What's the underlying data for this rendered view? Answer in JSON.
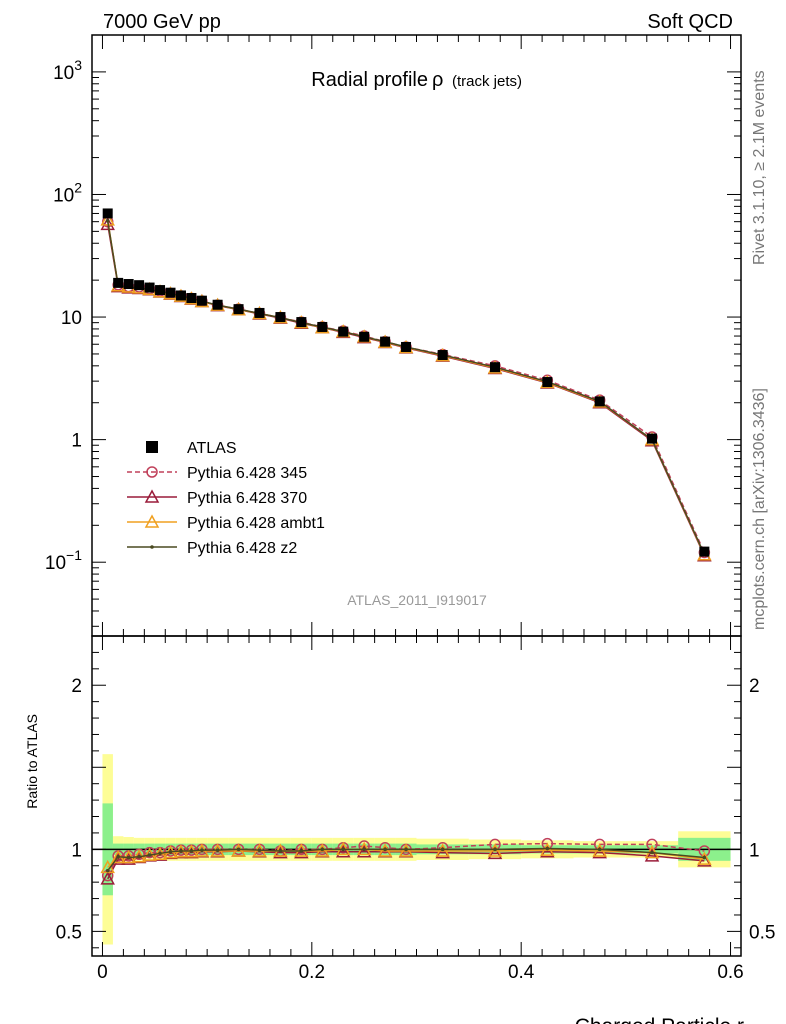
{
  "header": {
    "left": "7000 GeV pp",
    "right": "Soft QCD"
  },
  "side_labels": {
    "rivet": "Rivet 3.1.10, ≥ 2.1M events",
    "mcplots": "mcplots.cern.ch [arXiv:1306.3436]"
  },
  "chart_data": [
    {
      "type": "line",
      "title": "Radial profile",
      "title_symbol": "ρ",
      "subtitle": "(track jets)",
      "analysis_label": "ATLAS_2011_I919017",
      "xlabel": "Charged Particle r",
      "ylabel": "",
      "xlim": [
        -0.01,
        0.61
      ],
      "ylim": [
        0.025,
        2000
      ],
      "yscale": "log",
      "y_ticks": [
        {
          "value": 0.1,
          "base": "10",
          "exp": "−1"
        },
        {
          "value": 1,
          "label": "1"
        },
        {
          "value": 10,
          "label": "10"
        },
        {
          "value": 100,
          "base": "10",
          "exp": "2"
        },
        {
          "value": 1000,
          "base": "10",
          "exp": "3"
        }
      ],
      "legend_position": "lower-left",
      "x": [
        0.005,
        0.015,
        0.025,
        0.035,
        0.045,
        0.055,
        0.065,
        0.075,
        0.085,
        0.095,
        0.11,
        0.13,
        0.15,
        0.17,
        0.19,
        0.21,
        0.23,
        0.25,
        0.27,
        0.29,
        0.325,
        0.375,
        0.425,
        0.475,
        0.525,
        0.575
      ],
      "series": [
        {
          "name": "ATLAS",
          "color": "#000000",
          "marker": "square",
          "values": [
            70,
            19,
            18.6,
            18.2,
            17.4,
            16.6,
            15.8,
            15.0,
            14.3,
            13.6,
            12.6,
            11.6,
            10.8,
            10.0,
            9.1,
            8.3,
            7.6,
            6.9,
            6.3,
            5.7,
            4.9,
            3.9,
            2.95,
            2.05,
            1.02,
            0.122
          ]
        },
        {
          "name": "Pythia 6.428 345",
          "color": "#c0405a",
          "marker": "circle",
          "dash": true,
          "values": [
            60,
            18.3,
            17.7,
            17.6,
            17.0,
            16.3,
            15.6,
            14.9,
            14.2,
            13.5,
            12.5,
            11.6,
            10.7,
            9.9,
            9.1,
            8.3,
            7.7,
            7.0,
            6.3,
            5.7,
            4.95,
            4.0,
            3.05,
            2.1,
            1.05,
            0.12
          ]
        },
        {
          "name": "Pythia 6.428 370",
          "color": "#9a1c3a",
          "marker": "triangle",
          "values": [
            57,
            17.7,
            17.3,
            17.1,
            16.7,
            16.0,
            15.4,
            14.7,
            14.0,
            13.4,
            12.4,
            11.5,
            10.6,
            9.8,
            8.9,
            8.2,
            7.5,
            6.8,
            6.2,
            5.6,
            4.8,
            3.8,
            2.9,
            2.0,
            0.98,
            0.113
          ]
        },
        {
          "name": "Pythia 6.428 ambt1",
          "color": "#f0a020",
          "marker": "triangle",
          "values": [
            62,
            18.0,
            17.6,
            17.3,
            16.8,
            16.1,
            15.5,
            14.8,
            14.1,
            13.4,
            12.5,
            11.5,
            10.7,
            9.9,
            9.0,
            8.2,
            7.6,
            6.9,
            6.25,
            5.65,
            4.85,
            3.85,
            2.93,
            2.03,
            1.0,
            0.115
          ]
        },
        {
          "name": "Pythia 6.428 z2",
          "color": "#4a4a20",
          "marker": "dot",
          "values": [
            61,
            18.1,
            17.6,
            17.3,
            16.8,
            16.2,
            15.6,
            14.9,
            14.2,
            13.5,
            12.5,
            11.6,
            10.7,
            9.9,
            9.0,
            8.3,
            7.6,
            6.9,
            6.3,
            5.7,
            4.9,
            3.9,
            2.97,
            2.05,
            1.0,
            0.116
          ]
        }
      ]
    },
    {
      "type": "line",
      "title": "",
      "xlabel": "Charged Particle r",
      "ylabel": "Ratio to ATLAS",
      "xlim": [
        -0.01,
        0.61
      ],
      "ylim": [
        0.35,
        2.3
      ],
      "yscale": "linear",
      "y_ticks": [
        0.5,
        1,
        2
      ],
      "x_ticks": [
        0,
        0.2,
        0.4,
        0.6
      ],
      "x_tick_labels": [
        "0",
        "0.2",
        "0.4",
        "0.6"
      ],
      "band_edges": [
        0.0,
        0.01,
        0.02,
        0.03,
        0.04,
        0.05,
        0.06,
        0.07,
        0.08,
        0.09,
        0.1,
        0.12,
        0.14,
        0.16,
        0.18,
        0.2,
        0.22,
        0.24,
        0.26,
        0.28,
        0.3,
        0.35,
        0.4,
        0.45,
        0.5,
        0.55,
        0.6
      ],
      "bands": {
        "yellow": {
          "color": "#fdfd96",
          "half_width": [
            0.58,
            0.08,
            0.075,
            0.07,
            0.07,
            0.07,
            0.07,
            0.07,
            0.07,
            0.07,
            0.07,
            0.07,
            0.07,
            0.07,
            0.07,
            0.07,
            0.07,
            0.07,
            0.07,
            0.07,
            0.065,
            0.06,
            0.055,
            0.05,
            0.05,
            0.11
          ]
        },
        "green": {
          "color": "#8cf08c",
          "half_width": [
            0.28,
            0.035,
            0.035,
            0.035,
            0.035,
            0.035,
            0.035,
            0.035,
            0.035,
            0.035,
            0.035,
            0.035,
            0.035,
            0.035,
            0.035,
            0.035,
            0.035,
            0.035,
            0.035,
            0.035,
            0.03,
            0.03,
            0.025,
            0.025,
            0.025,
            0.07
          ]
        }
      },
      "series": [
        {
          "name": "Pythia 6.428 345",
          "color": "#c0405a",
          "marker": "circle",
          "dash": true,
          "values": [
            0.84,
            0.96,
            0.96,
            0.97,
            0.98,
            0.98,
            0.99,
            0.995,
            0.995,
            1.0,
            1.0,
            1.0,
            1.0,
            0.99,
            1.0,
            1.0,
            1.01,
            1.02,
            1.01,
            1.0,
            1.01,
            1.03,
            1.035,
            1.03,
            1.03,
            0.99
          ]
        },
        {
          "name": "Pythia 6.428 370",
          "color": "#9a1c3a",
          "marker": "triangle",
          "values": [
            0.82,
            0.94,
            0.94,
            0.95,
            0.96,
            0.965,
            0.975,
            0.98,
            0.98,
            0.985,
            0.985,
            0.99,
            0.985,
            0.98,
            0.98,
            0.985,
            0.985,
            0.985,
            0.985,
            0.985,
            0.98,
            0.975,
            0.985,
            0.98,
            0.96,
            0.93
          ]
        },
        {
          "name": "Pythia 6.428 ambt1",
          "color": "#f0a020",
          "marker": "triangle",
          "values": [
            0.89,
            0.95,
            0.95,
            0.955,
            0.965,
            0.97,
            0.98,
            0.985,
            0.985,
            0.99,
            0.99,
            0.99,
            0.99,
            0.99,
            0.99,
            0.99,
            1.0,
            1.0,
            0.99,
            0.99,
            0.99,
            0.99,
            0.995,
            0.99,
            0.98,
            0.94
          ]
        },
        {
          "name": "Pythia 6.428 z2",
          "color": "#4a4a20",
          "marker": "dot",
          "values": [
            0.87,
            0.955,
            0.95,
            0.955,
            0.965,
            0.975,
            0.985,
            0.99,
            0.99,
            0.995,
            0.995,
            1.0,
            0.995,
            0.99,
            0.99,
            1.0,
            1.0,
            1.0,
            1.0,
            1.0,
            1.0,
            1.0,
            1.005,
            1.0,
            0.98,
            0.95
          ]
        }
      ]
    }
  ]
}
